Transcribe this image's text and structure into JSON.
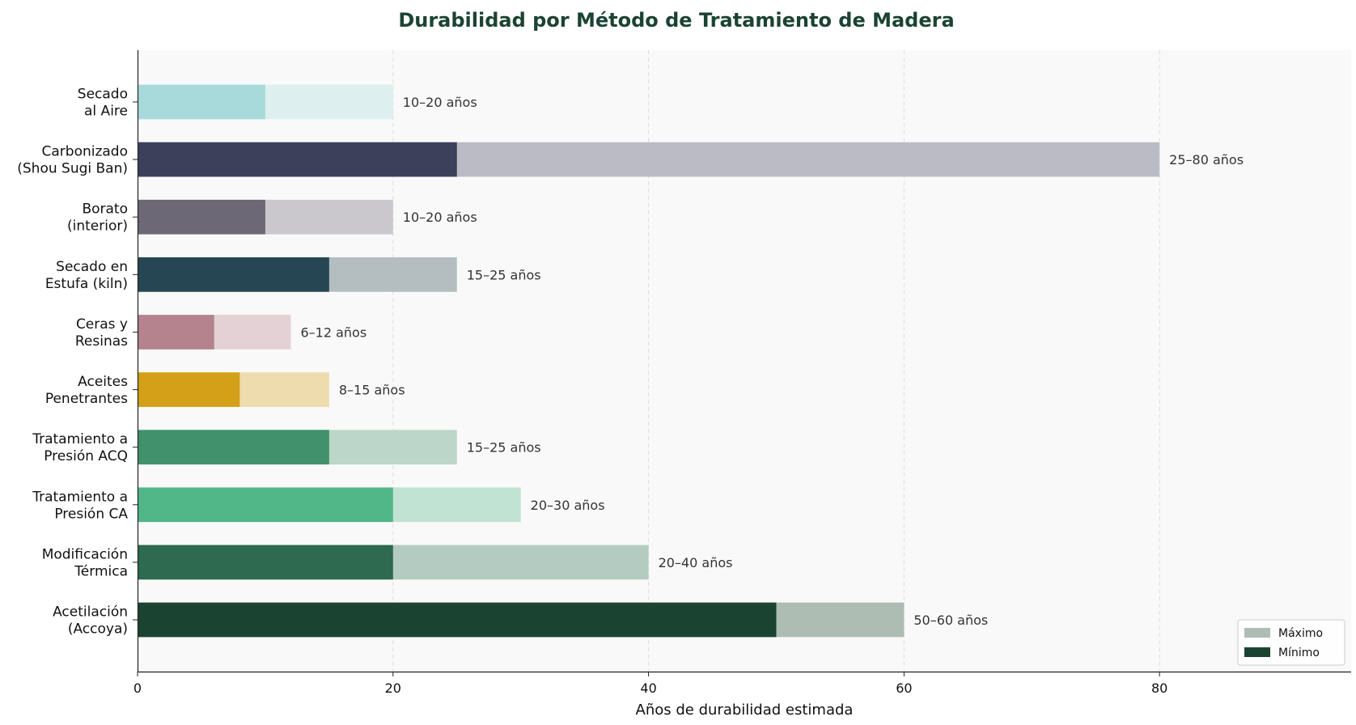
{
  "chart_data": {
    "type": "bar",
    "orientation": "horizontal",
    "title": "Durabilidad por Método de Tratamiento de Madera",
    "xlabel": "Años de durabilidad estimada",
    "ylabel": "",
    "xlim": [
      0,
      95
    ],
    "xticks": [
      0,
      20,
      40,
      60,
      80
    ],
    "grid": "vertical-dashed",
    "legend_position": "bottom-right",
    "colors": {
      "title": "#1b4332",
      "plot_background": "#f9f9f9",
      "grid": "#dddddd"
    },
    "legend": [
      {
        "label": "Máximo",
        "color": "#adbdb4"
      },
      {
        "label": "Mínimo",
        "color": "#1b4332"
      }
    ],
    "categories": [
      {
        "label": [
          "Acetilación",
          "(Accoya)"
        ],
        "min": 50,
        "max": 60,
        "range_label": "50–60 años",
        "color_min": "#1b4332",
        "color_max": "#adbdb4"
      },
      {
        "label": [
          "Modificación",
          "Térmica"
        ],
        "min": 20,
        "max": 40,
        "range_label": "20–40 años",
        "color_min": "#2d6a4f",
        "color_max": "#b4cbc1"
      },
      {
        "label": [
          "Tratamiento a",
          "Presión CA"
        ],
        "min": 20,
        "max": 30,
        "range_label": "20–30 años",
        "color_min": "#52b788",
        "color_max": "#c0e3d3"
      },
      {
        "label": [
          "Tratamiento a",
          "Presión ACQ"
        ],
        "min": 15,
        "max": 25,
        "range_label": "15–25 años",
        "color_min": "#40916c",
        "color_max": "#bcd6c9"
      },
      {
        "label": [
          "Aceites",
          "Penetrantes"
        ],
        "min": 8,
        "max": 15,
        "range_label": "8–15 años",
        "color_min": "#d4a017",
        "color_max": "#eedcaf"
      },
      {
        "label": [
          "Ceras y",
          "Resinas"
        ],
        "min": 6,
        "max": 12,
        "range_label": "6–12 años",
        "color_min": "#b5838d",
        "color_max": "#e3d1d5"
      },
      {
        "label": [
          "Secado en",
          "Estufa (kiln)"
        ],
        "min": 15,
        "max": 25,
        "range_label": "15–25 años",
        "color_min": "#264653",
        "color_max": "#b4bec1"
      },
      {
        "label": [
          "Borato",
          "(interior)"
        ],
        "min": 10,
        "max": 20,
        "range_label": "10–20 años",
        "color_min": "#6d6875",
        "color_max": "#cac8cd"
      },
      {
        "label": [
          "Carbonizado",
          "(Shou Sugi Ban)"
        ],
        "min": 25,
        "max": 80,
        "range_label": "25–80 años",
        "color_min": "#3d405b",
        "color_max": "#bbbbc5"
      },
      {
        "label": [
          "Secado",
          "al Aire"
        ],
        "min": 10,
        "max": 20,
        "range_label": "10–20 años",
        "color_min": "#a8dadc",
        "color_max": "#ddefef"
      }
    ]
  }
}
